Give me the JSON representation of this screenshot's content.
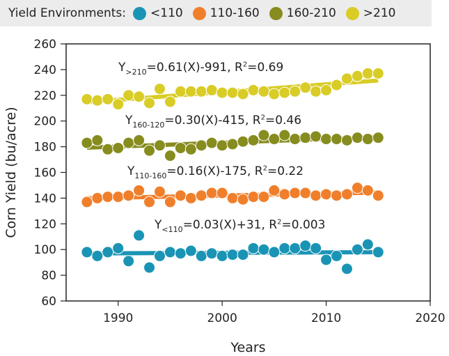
{
  "chart_data": {
    "type": "scatter",
    "legend_title": "Yield Environments:",
    "legend_placement": "top",
    "xlabel": "Years",
    "ylabel": "Corn Yield (bu/acre)",
    "xlim": [
      1985,
      2020
    ],
    "ylim": [
      60,
      260
    ],
    "xticks": [
      1990,
      2000,
      2010,
      2020
    ],
    "yticks": [
      60,
      80,
      100,
      120,
      140,
      160,
      180,
      200,
      220,
      240,
      260
    ],
    "x": [
      1987,
      1988,
      1989,
      1990,
      1991,
      1992,
      1993,
      1994,
      1995,
      1996,
      1997,
      1998,
      1999,
      2000,
      2001,
      2002,
      2003,
      2004,
      2005,
      2006,
      2007,
      2008,
      2009,
      2010,
      2011,
      2012,
      2013,
      2014,
      2015
    ],
    "series": [
      {
        "name": "<110",
        "color": "#1a94b5",
        "values": [
          98,
          95,
          98,
          101,
          91,
          111,
          86,
          95,
          98,
          97,
          99,
          95,
          97,
          95,
          96,
          96,
          101,
          100,
          98,
          101,
          101,
          103,
          101,
          92,
          95,
          85,
          100,
          104,
          98
        ]
      },
      {
        "name": "110-160",
        "color": "#f07f2c",
        "values": [
          137,
          140,
          141,
          141,
          142,
          146,
          137,
          145,
          137,
          142,
          140,
          142,
          144,
          144,
          140,
          139,
          141,
          141,
          146,
          143,
          144,
          144,
          142,
          143,
          142,
          143,
          148,
          146,
          142
        ]
      },
      {
        "name": "160-210",
        "color": "#878c1f",
        "values": [
          183,
          185,
          178,
          179,
          183,
          185,
          177,
          181,
          173,
          179,
          178,
          181,
          183,
          181,
          182,
          184,
          185,
          189,
          186,
          189,
          186,
          187,
          188,
          186,
          186,
          185,
          187,
          186,
          187
        ]
      },
      {
        "name": ">210",
        "color": "#d9cc27",
        "values": [
          217,
          216,
          217,
          213,
          220,
          219,
          214,
          225,
          215,
          223,
          223,
          223,
          224,
          222,
          222,
          221,
          224,
          223,
          221,
          222,
          223,
          226,
          223,
          224,
          228,
          233,
          235,
          237,
          237
        ]
      }
    ],
    "annotations": [
      {
        "y_main": "Y",
        "sub": ">210",
        "rest": "=0.61(X)-991, R",
        "sup": "2",
        "tail": "=0.69"
      },
      {
        "y_main": "Y",
        "sub": "160-120",
        "rest": "=0.30(X)-415, R",
        "sup": "2",
        "tail": "=0.46"
      },
      {
        "y_main": "Y",
        "sub": "110-160",
        "rest": "=0.16(X)-175, R",
        "sup": "2",
        "tail": "=0.22"
      },
      {
        "y_main": "Y",
        "sub": "<110",
        "rest": "=0.03(X)+31, R",
        "sup": "2",
        "tail": "=0.003"
      }
    ]
  }
}
